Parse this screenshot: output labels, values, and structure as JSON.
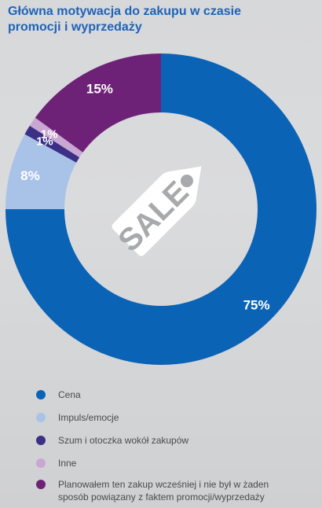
{
  "title_lines": [
    "Główna motywacja do zakupu w czasie",
    "promocji i wyprzedaży"
  ],
  "center_label": "SALE",
  "colors": {
    "background": "#d8d9db",
    "title": "#1f63b5",
    "tag": "#ffffff",
    "tag_text": "#a8a9ab"
  },
  "chart_data": {
    "type": "pie",
    "title": "Główna motywacja do zakupu w czasie promocji i wyprzedaży",
    "unit": "%",
    "slices": [
      {
        "name": "Cena",
        "value": 75,
        "label": "75%",
        "color": "#0b63b6"
      },
      {
        "name": "Impuls/emocje",
        "value": 8,
        "label": "8%",
        "color": "#a9c2e8"
      },
      {
        "name": "Szum i otoczka wokół zakupów",
        "value": 1,
        "label": "1%",
        "color": "#3b2f86"
      },
      {
        "name": "Inne",
        "value": 1,
        "label": "1%",
        "color": "#c9a7d3"
      },
      {
        "name": "Planowałem ten zakup wcześniej i nie był w żaden sposób powiązany z faktem promocji/wyprzedaży",
        "value": 15,
        "label": "15%",
        "color": "#6e2277"
      }
    ],
    "legend_position": "bottom"
  },
  "legend": [
    {
      "label": "Cena",
      "color": "#0b63b6"
    },
    {
      "label": "Impuls/emocje",
      "color": "#a9c2e8"
    },
    {
      "label": "Szum i otoczka wokół zakupów",
      "color": "#3b2f86"
    },
    {
      "label": "Inne",
      "color": "#c9a7d3"
    },
    {
      "label": "Planowałem ten zakup wcześniej i nie był w żaden sposób powiązany z faktem promocji/wyprzedaży",
      "color": "#6e2277"
    }
  ]
}
